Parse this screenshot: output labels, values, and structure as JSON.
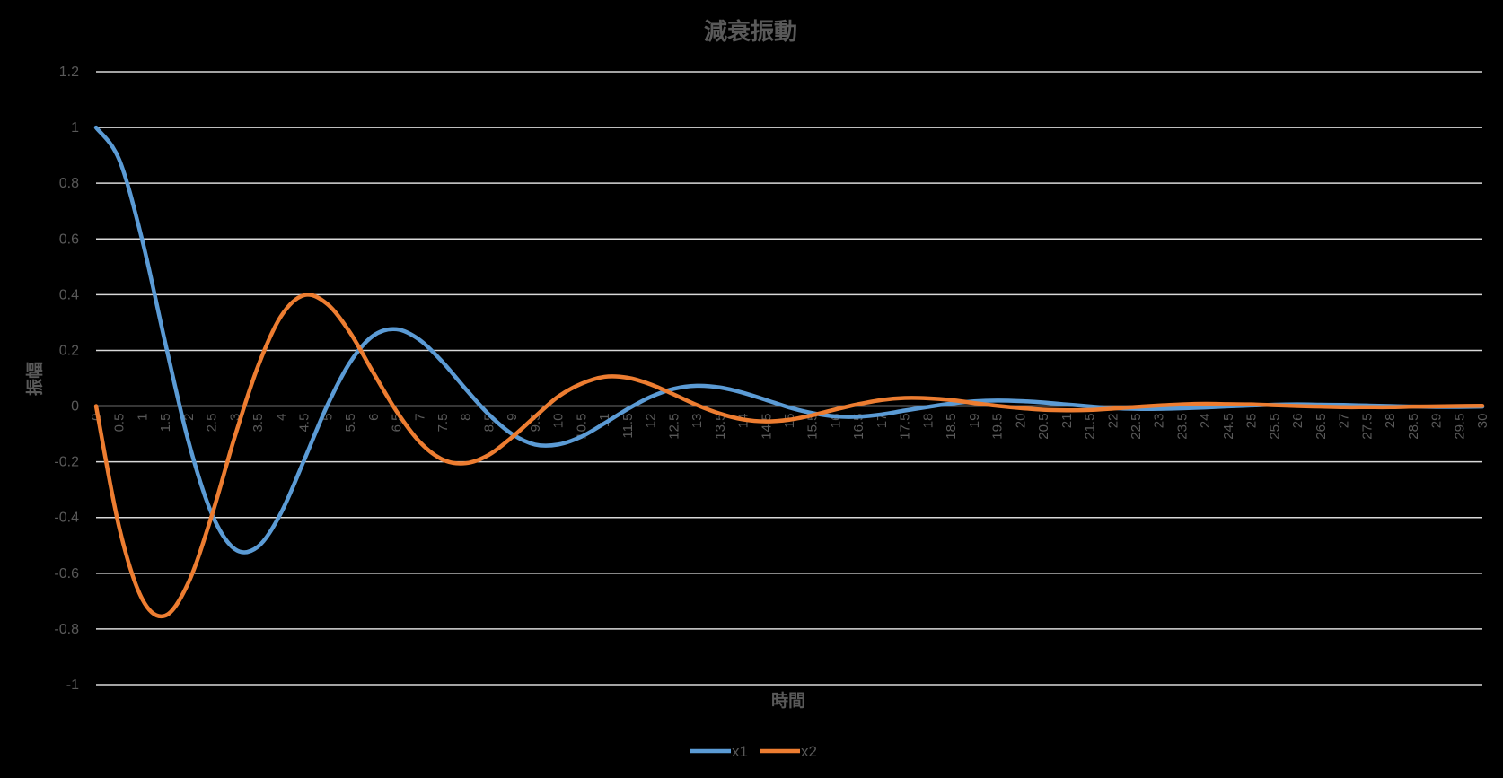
{
  "chart_data": {
    "type": "line",
    "title": "減衰振動",
    "xlabel": "時間",
    "ylabel": "振幅",
    "ylim": [
      -1,
      1.2
    ],
    "yticks": [
      "-1",
      "-0.8",
      "-0.6",
      "-0.4",
      "-0.2",
      "0",
      "0.2",
      "0.4",
      "0.6",
      "0.8",
      "1",
      "1.2"
    ],
    "grid": true,
    "legend_position": "bottom",
    "x": [
      0,
      0.5,
      1,
      1.5,
      2,
      2.5,
      3,
      3.5,
      4,
      4.5,
      5,
      5.5,
      6,
      6.5,
      7,
      7.5,
      8,
      8.5,
      9,
      9.5,
      10,
      10.5,
      11,
      11.5,
      12,
      12.5,
      13,
      13.5,
      14,
      14.5,
      15,
      15.5,
      16,
      16.5,
      17,
      17.5,
      18,
      18.5,
      19,
      19.5,
      20,
      20.5,
      21,
      21.5,
      22,
      22.5,
      23,
      23.5,
      24,
      24.5,
      25,
      25.5,
      26,
      26.5,
      27,
      27.5,
      28,
      28.5,
      29,
      29.5,
      30
    ],
    "series": [
      {
        "name": "x1",
        "color": "#5B9BD5",
        "values": [
          1.0,
          0.885,
          0.595,
          0.225,
          -0.127,
          -0.385,
          -0.513,
          -0.505,
          -0.384,
          -0.195,
          0.001,
          0.158,
          0.253,
          0.276,
          0.238,
          0.158,
          0.061,
          -0.03,
          -0.1,
          -0.138,
          -0.138,
          -0.11,
          -0.062,
          -0.011,
          0.033,
          0.062,
          0.073,
          0.067,
          0.048,
          0.022,
          -0.005,
          -0.025,
          -0.037,
          -0.038,
          -0.03,
          -0.016,
          -0.003,
          0.009,
          0.017,
          0.02,
          0.018,
          0.013,
          0.006,
          -0.001,
          -0.007,
          -0.01,
          -0.01,
          -0.008,
          -0.005,
          -0.001,
          0.002,
          0.005,
          0.006,
          0.005,
          0.004,
          0.002,
          0.0,
          -0.002,
          -0.003,
          -0.003,
          -0.002
        ]
      },
      {
        "name": "x2",
        "color": "#ED7D31",
        "values": [
          0.0,
          -0.435,
          -0.693,
          -0.752,
          -0.633,
          -0.395,
          -0.111,
          0.141,
          0.322,
          0.398,
          0.367,
          0.263,
          0.12,
          -0.018,
          -0.128,
          -0.192,
          -0.205,
          -0.175,
          -0.112,
          -0.038,
          0.034,
          0.08,
          0.105,
          0.102,
          0.078,
          0.042,
          0.004,
          -0.027,
          -0.048,
          -0.055,
          -0.049,
          -0.033,
          -0.012,
          0.007,
          0.022,
          0.029,
          0.028,
          0.022,
          0.011,
          0.001,
          -0.007,
          -0.013,
          -0.015,
          -0.014,
          -0.009,
          -0.003,
          0.002,
          0.006,
          0.008,
          0.007,
          0.006,
          0.003,
          0.0,
          -0.002,
          -0.004,
          -0.004,
          -0.004,
          -0.002,
          -0.001,
          0.0,
          0.001
        ]
      }
    ]
  },
  "style": {
    "background": "#000000",
    "gridline_color": "#D9D9D9",
    "text_color": "#595959"
  }
}
